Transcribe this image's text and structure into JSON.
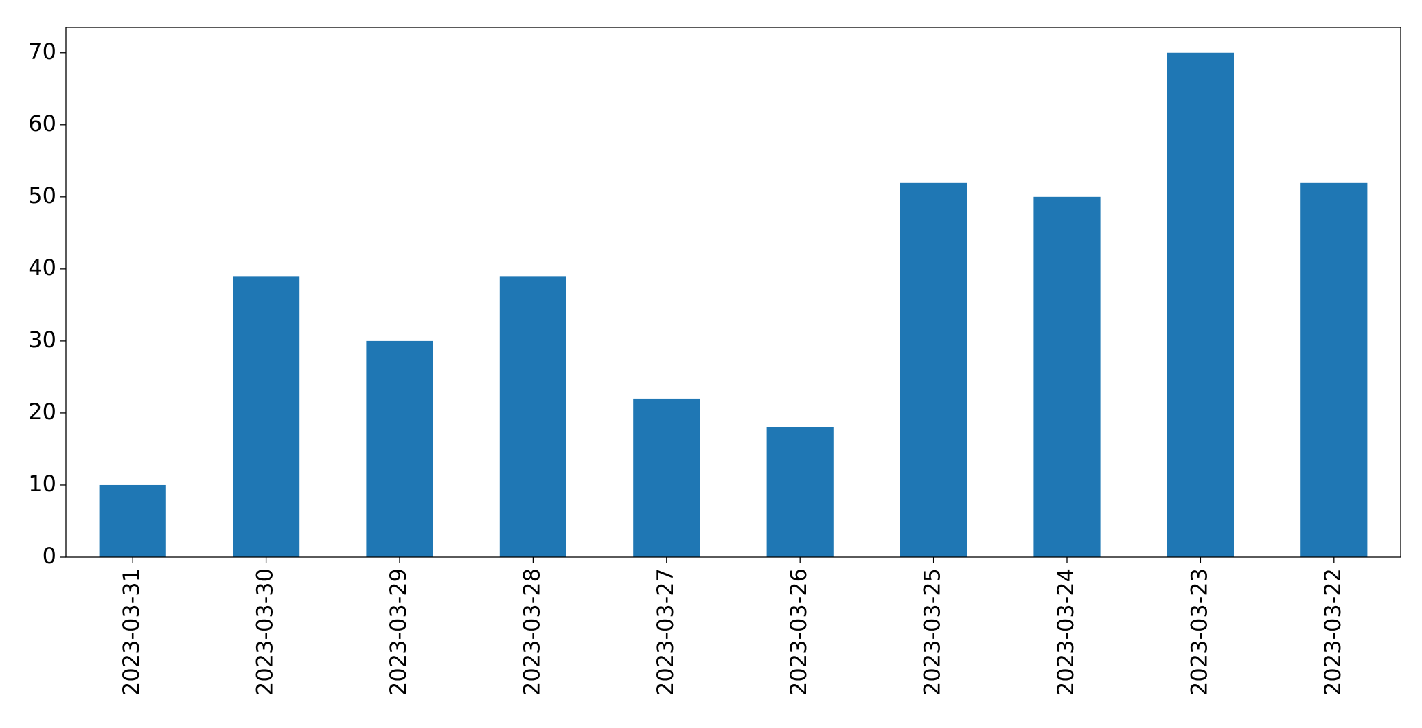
{
  "chart_data": {
    "type": "bar",
    "categories": [
      "2023-03-31",
      "2023-03-30",
      "2023-03-29",
      "2023-03-28",
      "2023-03-27",
      "2023-03-26",
      "2023-03-25",
      "2023-03-24",
      "2023-03-23",
      "2023-03-22"
    ],
    "values": [
      10,
      39,
      30,
      39,
      22,
      18,
      52,
      50,
      70,
      52
    ],
    "color": "#1f77b4",
    "ylim": [
      0,
      73.5
    ],
    "yticks": [
      0,
      10,
      20,
      30,
      40,
      50,
      60,
      70
    ],
    "grid": false
  }
}
